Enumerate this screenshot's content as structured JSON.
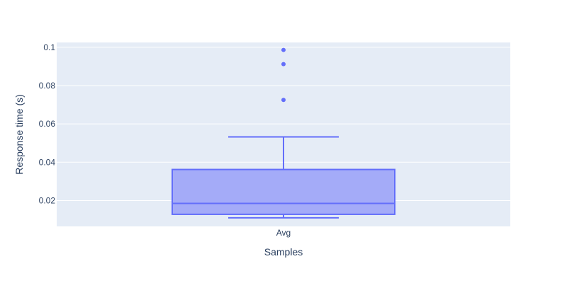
{
  "chart_data": {
    "type": "box",
    "title": "",
    "xlabel": "Samples",
    "ylabel": "Response time (s)",
    "categories": [
      "Avg"
    ],
    "ylim": [
      0.0065,
      0.1025
    ],
    "yticks": [
      0.02,
      0.04,
      0.06,
      0.08,
      0.1
    ],
    "ytick_labels": [
      "0.02",
      "0.04",
      "0.06",
      "0.08",
      "0.1"
    ],
    "grid": true,
    "colors": {
      "plot_bg": "#e5ecf6",
      "grid": "#ffffff",
      "box_line": "#636efa",
      "box_fill": "#a4abf8",
      "text": "#2a3f5f"
    },
    "series": [
      {
        "category": "Avg",
        "lower_whisker": 0.011,
        "q1": 0.0128,
        "median": 0.0185,
        "q3": 0.0362,
        "upper_whisker": 0.0532,
        "outliers": [
          0.0725,
          0.0912,
          0.0986
        ]
      }
    ]
  }
}
